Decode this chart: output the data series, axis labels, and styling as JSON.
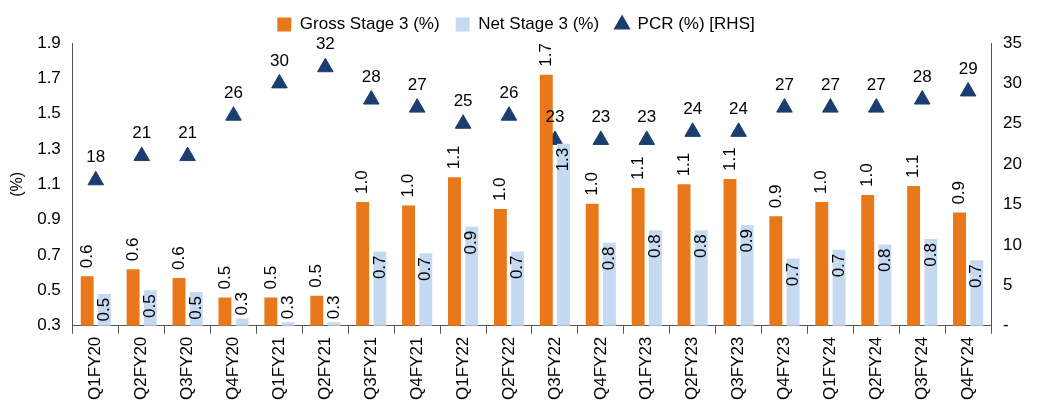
{
  "chart_data": {
    "type": "bar",
    "ylabel": "(%)",
    "categories": [
      "Q1FY20",
      "Q2FY20",
      "Q3FY20",
      "Q4FY20",
      "Q1FY21",
      "Q2FY21",
      "Q3FY21",
      "Q4FY21",
      "Q1FY22",
      "Q2FY22",
      "Q3FY22",
      "Q4FY22",
      "Q1FY23",
      "Q2FY23",
      "Q3FY23",
      "Q4FY23",
      "Q1FY24",
      "Q2FY24",
      "Q3FY24",
      "Q4FY24"
    ],
    "series": [
      {
        "name": "Gross Stage 3 (%)",
        "color": "#e8781a",
        "values": [
          0.58,
          0.62,
          0.57,
          0.46,
          0.46,
          0.47,
          1.0,
          0.98,
          1.14,
          0.96,
          1.72,
          0.99,
          1.08,
          1.1,
          1.13,
          0.92,
          1.0,
          1.04,
          1.09,
          0.94
        ],
        "value_labels": [
          "0.6",
          "0.6",
          "0.6",
          "0.5",
          "0.5",
          "0.5",
          "1.0",
          "1.0",
          "1.1",
          "1.0",
          "1.7",
          "1.0",
          "1.1",
          "1.1",
          "1.1",
          "0.9",
          "1.0",
          "1.0",
          "1.1",
          "0.9"
        ]
      },
      {
        "name": "Net Stage 3 (%)",
        "color": "#c5d9f1",
        "values": [
          0.48,
          0.5,
          0.49,
          0.34,
          0.32,
          0.32,
          0.72,
          0.71,
          0.86,
          0.72,
          1.33,
          0.77,
          0.84,
          0.84,
          0.87,
          0.68,
          0.73,
          0.76,
          0.79,
          0.67
        ],
        "value_labels": [
          "0.5",
          "0.5",
          "0.5",
          "0.3",
          "0.3",
          "0.3",
          "0.7",
          "0.7",
          "0.9",
          "0.7",
          "1.3",
          "0.8",
          "0.8",
          "0.8",
          "0.9",
          "0.7",
          "0.7",
          "0.8",
          "0.8",
          "0.7"
        ]
      },
      {
        "name": "PCR (%) [RHS]",
        "type": "scatter",
        "axis": "y2",
        "marker": "triangle",
        "color": "#1a3f6e",
        "values": [
          18,
          21,
          21,
          26,
          30,
          32,
          28,
          27,
          25,
          26,
          23,
          23,
          23,
          24,
          24,
          27,
          27,
          27,
          28,
          29
        ],
        "value_labels": [
          "18",
          "21",
          "21",
          "26",
          "30",
          "32",
          "28",
          "27",
          "25",
          "26",
          "23",
          "23",
          "23",
          "24",
          "24",
          "27",
          "27",
          "27",
          "28",
          "29"
        ]
      }
    ],
    "ylim": [
      0.3,
      1.9
    ],
    "yticks": [
      0.3,
      0.5,
      0.7,
      0.9,
      1.1,
      1.3,
      1.5,
      1.7,
      1.9
    ],
    "y2lim": [
      0,
      35
    ],
    "y2ticks": [
      {
        "value": 0,
        "label": "-"
      },
      5,
      10,
      15,
      20,
      25,
      30,
      35
    ],
    "grid": false,
    "legend": "top"
  }
}
